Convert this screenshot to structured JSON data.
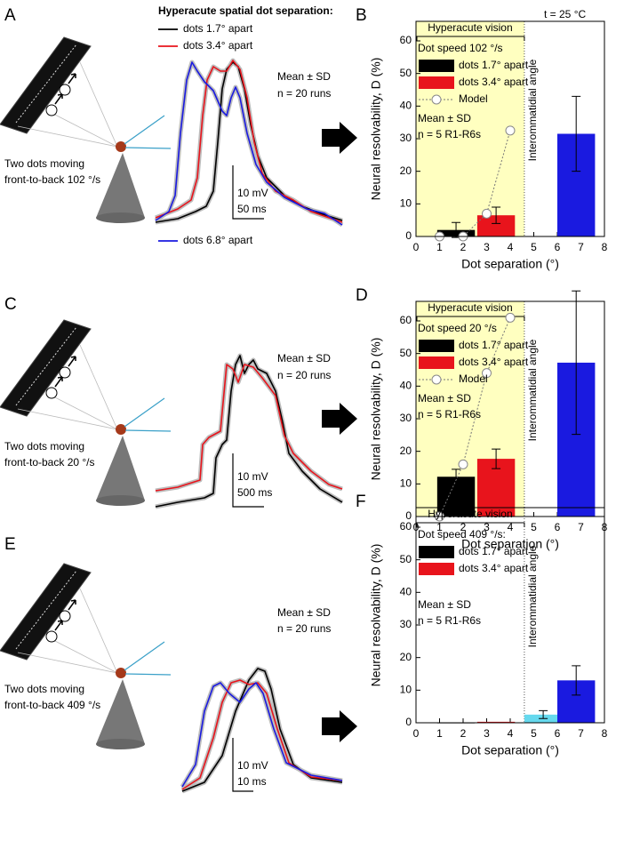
{
  "panels": [
    {
      "letter": "A",
      "stimulus": [
        "Two dots moving",
        "front-to-back 102 °/s"
      ],
      "title": "Hyperacute spatial dot separation:",
      "traces": [
        {
          "name": "dots 1.7° apart",
          "color": "#000000"
        },
        {
          "name": "dots 3.4° apart",
          "color": "#e8141c"
        },
        {
          "name": "dots 6.8° apart",
          "color": "#1a1ae0"
        }
      ],
      "stats": [
        "Mean ± SD",
        "n = 20 runs"
      ],
      "scale": [
        "10 mV",
        "50 ms"
      ]
    },
    {
      "letter": "C",
      "stimulus": [
        "Two dots moving",
        "front-to-back 20 °/s"
      ],
      "traces": [
        {
          "color": "#000000"
        },
        {
          "color": "#e8141c"
        }
      ],
      "stats": [
        "Mean ± SD",
        "n = 20 runs"
      ],
      "scale": [
        "10 mV",
        "500 ms"
      ]
    },
    {
      "letter": "E",
      "stimulus": [
        "Two dots moving",
        "front-to-back 409 °/s"
      ],
      "traces": [
        {
          "color": "#000000"
        },
        {
          "color": "#e8141c"
        },
        {
          "color": "#1a1ae0"
        }
      ],
      "stats": [
        "Mean ± SD",
        "n = 20 runs"
      ],
      "scale": [
        "10 mV",
        "10 ms"
      ]
    }
  ],
  "chart_data": [
    {
      "type": "bar",
      "panel": "B",
      "note": "t = 25 °C",
      "y_label": "Neural resolvability, D (%)",
      "x_label": "Dot separation (°)",
      "xlim": [
        0,
        8
      ],
      "xticks": [
        0,
        1,
        2,
        3,
        4,
        5,
        6,
        7,
        8
      ],
      "ylim": [
        0,
        66
      ],
      "yticks": [
        0,
        10,
        20,
        30,
        40,
        50,
        60
      ],
      "bracket_label": "Hyperacute vision",
      "vline": 4.6,
      "vline_label": "Interommatidial angle",
      "shade": [
        0,
        4.6
      ],
      "shade_color": "#ffffc0",
      "legend_title": "Dot speed 102 °/s",
      "stats": [
        "Mean ± SD",
        "n = 5 R1-R6s"
      ],
      "series": [
        {
          "name": "dots 1.7° apart",
          "color": "#000000",
          "x": [
            1.7
          ],
          "values": [
            2
          ],
          "errors": [
            2.3
          ]
        },
        {
          "name": "dots 3.4° apart",
          "color": "#e8141c",
          "x": [
            3.4
          ],
          "values": [
            6.5
          ],
          "errors": [
            2.5
          ]
        },
        {
          "color": "#1a1ae0",
          "x": [
            6.8
          ],
          "values": [
            31.5
          ],
          "errors": [
            11.5
          ]
        },
        {
          "name": "Model",
          "type": "line",
          "color": "#777777",
          "x": [
            1,
            2,
            3,
            4
          ],
          "values": [
            0,
            0,
            7,
            32.5
          ]
        }
      ]
    },
    {
      "type": "bar",
      "panel": "D",
      "y_label": "Neural resolvability, D (%)",
      "x_label": "Dot separation (°)",
      "xlim": [
        0,
        8
      ],
      "xticks": [
        0,
        1,
        2,
        3,
        4,
        5,
        6,
        7,
        8
      ],
      "ylim": [
        0,
        66
      ],
      "yticks": [
        0,
        10,
        20,
        30,
        40,
        50,
        60
      ],
      "bracket_label": "Hyperacute vision",
      "vline": 4.6,
      "vline_label": "Interommatidial angle",
      "shade": [
        0,
        4.6
      ],
      "shade_color": "#ffffc0",
      "legend_title": "Dot speed 20 °/s",
      "stats": [
        "Mean ± SD",
        "n = 5 R1-R6s"
      ],
      "series": [
        {
          "name": "dots 1.7° apart",
          "color": "#000000",
          "x": [
            1.7
          ],
          "values": [
            12.2
          ],
          "errors": [
            2.3
          ]
        },
        {
          "name": "dots 3.4° apart",
          "color": "#e8141c",
          "x": [
            3.4
          ],
          "values": [
            17.7
          ],
          "errors": [
            3
          ]
        },
        {
          "color": "#1a1ae0",
          "x": [
            6.8
          ],
          "values": [
            47.2
          ],
          "errors": [
            22
          ]
        },
        {
          "name": "Model",
          "type": "line",
          "color": "#777777",
          "x": [
            1,
            2,
            3,
            4
          ],
          "values": [
            0,
            16,
            44,
            61
          ]
        }
      ]
    },
    {
      "type": "bar",
      "panel": "F",
      "y_label": "Neural resolvability, D (%)",
      "x_label": "Dot separation (°)",
      "xlim": [
        0,
        8
      ],
      "xticks": [
        0,
        1,
        2,
        3,
        4,
        5,
        6,
        7,
        8
      ],
      "ylim": [
        0,
        66
      ],
      "yticks": [
        0,
        10,
        20,
        30,
        40,
        50,
        60
      ],
      "bracket_label": "Hyperacute vision",
      "vline": 4.6,
      "vline_label": "Interommatidial angle",
      "legend_title": "Dot speed 409 °/s:",
      "stats": [
        "Mean ± SD",
        "n = 5 R1-R6s"
      ],
      "series": [
        {
          "name": "dots 1.7° apart",
          "color": "#000000",
          "x": [
            1.7
          ],
          "values": [
            0.1
          ]
        },
        {
          "name": "dots 3.4° apart",
          "color": "#e8141c",
          "x": [
            3.4
          ],
          "values": [
            0.3
          ]
        },
        {
          "color": "#66d9ee",
          "x": [
            5.4
          ],
          "values": [
            2.5
          ],
          "errors": [
            1.2
          ]
        },
        {
          "color": "#1a1ae0",
          "x": [
            6.8
          ],
          "values": [
            13
          ],
          "errors": [
            4.5
          ]
        }
      ]
    }
  ]
}
